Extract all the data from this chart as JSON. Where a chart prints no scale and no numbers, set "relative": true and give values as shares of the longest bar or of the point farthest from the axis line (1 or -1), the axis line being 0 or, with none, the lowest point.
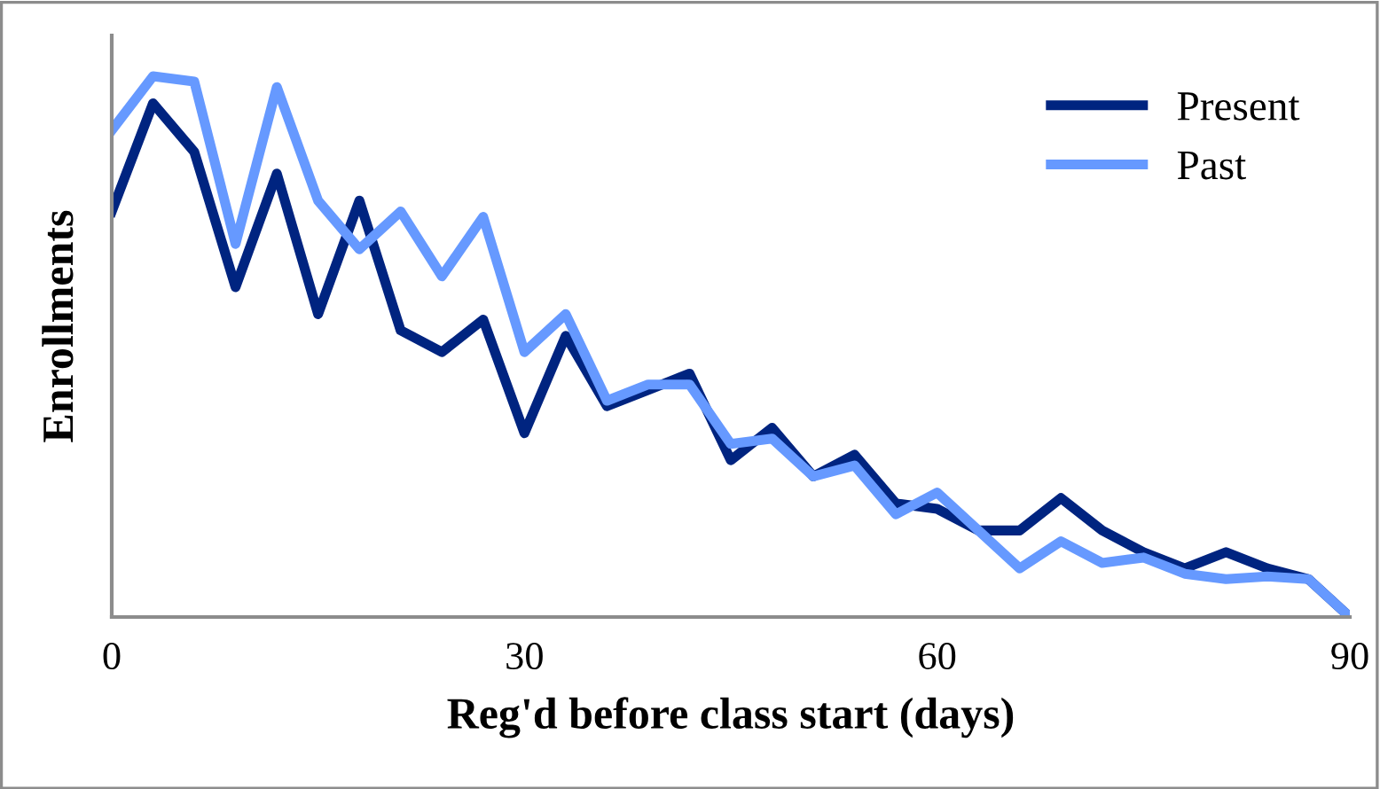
{
  "chart_data": {
    "type": "line",
    "xlabel": "Reg'd before class start (days)",
    "ylabel": "Enrollments",
    "relative": true,
    "x": [
      0,
      3,
      6,
      9,
      12,
      15,
      18,
      21,
      24,
      27,
      30,
      33,
      36,
      39,
      42,
      45,
      48,
      51,
      54,
      57,
      60,
      63,
      66,
      69,
      72,
      75,
      78,
      81,
      84,
      87,
      90
    ],
    "xlim": [
      0,
      90
    ],
    "xticks": [
      0,
      30,
      60,
      90
    ],
    "tick_labels": "x",
    "grid": false,
    "legend": "top right",
    "marker": "none",
    "line_style": "solid",
    "series": [
      {
        "name": "Present",
        "color": "#002480",
        "values": [
          0.75,
          0.95,
          0.86,
          0.61,
          0.82,
          0.56,
          0.77,
          0.53,
          0.49,
          0.55,
          0.34,
          0.52,
          0.39,
          0.42,
          0.45,
          0.29,
          0.35,
          0.26,
          0.3,
          0.21,
          0.2,
          0.16,
          0.16,
          0.22,
          0.16,
          0.12,
          0.09,
          0.12,
          0.09,
          0.07,
          0
        ]
      },
      {
        "name": "Past",
        "color": "#6699ff",
        "values": [
          0.9,
          1.0,
          0.99,
          0.69,
          0.98,
          0.77,
          0.68,
          0.75,
          0.63,
          0.74,
          0.49,
          0.56,
          0.4,
          0.43,
          0.43,
          0.32,
          0.33,
          0.26,
          0.28,
          0.19,
          0.23,
          0.16,
          0.09,
          0.14,
          0.1,
          0.11,
          0.08,
          0.07,
          0.075,
          0.07,
          0
        ]
      }
    ]
  }
}
